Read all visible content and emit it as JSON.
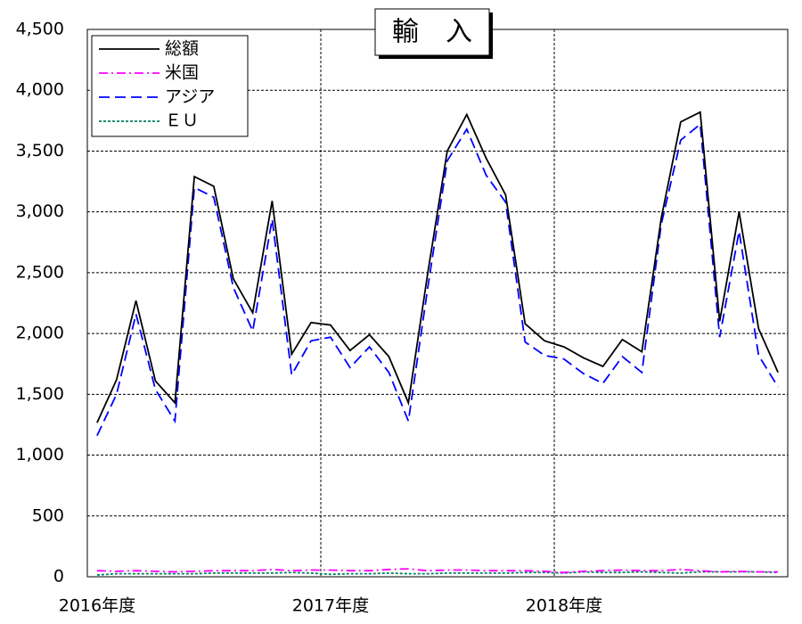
{
  "chart_data": {
    "type": "line",
    "title": "輸　入",
    "categories": [
      "2016年度",
      null,
      null,
      null,
      null,
      null,
      null,
      null,
      null,
      null,
      null,
      null,
      "2017年度",
      null,
      null,
      null,
      null,
      null,
      null,
      null,
      null,
      null,
      null,
      null,
      "2018年度",
      null,
      null,
      null,
      null,
      null,
      null,
      null,
      null,
      null,
      null,
      null
    ],
    "series": [
      {
        "name": "総額",
        "color": "#000000",
        "dash": "solid",
        "values": [
          1266,
          1620,
          2270,
          1610,
          1430,
          3290,
          3210,
          2450,
          2170,
          3090,
          1830,
          2090,
          2070,
          1860,
          1990,
          1810,
          1430,
          2500,
          3500,
          3800,
          3440,
          3140,
          2080,
          1940,
          1890,
          1800,
          1730,
          1950,
          1850,
          2950,
          3740,
          3820,
          2100,
          3000,
          2040,
          1680
        ]
      },
      {
        "name": "米国",
        "color": "#ff00ff",
        "dash": "dashdot",
        "values": [
          50,
          45,
          50,
          45,
          40,
          45,
          50,
          50,
          50,
          60,
          50,
          55,
          55,
          50,
          50,
          60,
          65,
          50,
          55,
          55,
          50,
          50,
          50,
          45,
          35,
          45,
          50,
          55,
          50,
          50,
          60,
          50,
          40,
          45,
          40,
          40
        ]
      },
      {
        "name": "アジア",
        "color": "#0000ff",
        "dash": "dashed",
        "values": [
          1160,
          1500,
          2160,
          1540,
          1280,
          3200,
          3120,
          2380,
          2020,
          2940,
          1660,
          1940,
          1970,
          1720,
          1890,
          1680,
          1280,
          2380,
          3420,
          3680,
          3300,
          3080,
          1930,
          1820,
          1790,
          1670,
          1590,
          1810,
          1680,
          2900,
          3590,
          3720,
          1970,
          2840,
          1820,
          1560
        ]
      },
      {
        "name": "ＥＵ",
        "color": "#008060",
        "dash": "dotted",
        "values": [
          15,
          25,
          25,
          25,
          25,
          25,
          30,
          30,
          30,
          30,
          35,
          30,
          20,
          25,
          25,
          30,
          25,
          25,
          30,
          30,
          30,
          30,
          35,
          35,
          30,
          40,
          35,
          35,
          40,
          35,
          30,
          40,
          40,
          40,
          40,
          35
        ]
      }
    ],
    "ylim": [
      0,
      4500
    ],
    "yticks": [
      0,
      500,
      {
        "value": 1000,
        "label": "1,000"
      },
      {
        "value": 1500,
        "label": "1,500"
      },
      {
        "value": 2000,
        "label": "2,000"
      },
      {
        "value": 2500,
        "label": "2,500"
      },
      {
        "value": 3000,
        "label": "3,000"
      },
      {
        "value": 3500,
        "label": "3,500"
      },
      {
        "value": 4000,
        "label": "4,000"
      },
      {
        "value": 4500,
        "label": "4,500"
      }
    ],
    "grid": true,
    "legend": "upper-left"
  }
}
